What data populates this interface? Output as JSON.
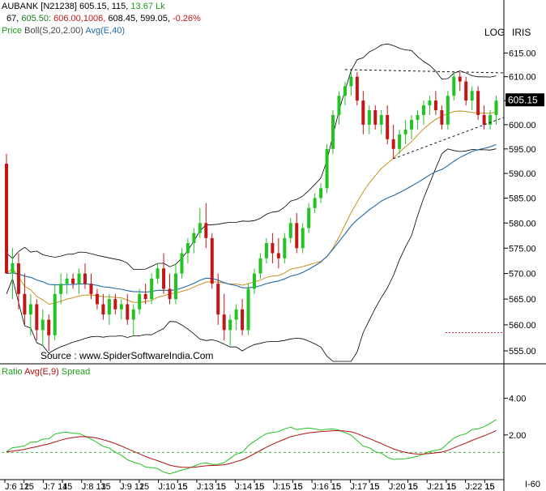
{
  "header": {
    "line1": {
      "symbol": "AUBANK [N21238]",
      "vals": "605.15, 115,",
      "chg": "13.67",
      "unit": "Lk"
    },
    "line2": {
      "a": "67,",
      "b": "605.50:",
      "c": "606.00,1006,",
      "d": "608.45,",
      "e": "599.05,",
      "f": "-0.26%"
    },
    "line3": {
      "price": "Price",
      "boll": "Boll(S,20,2.00)",
      "avg": "Avg(E,40)"
    },
    "log": "LOG",
    "iris": "IRIS"
  },
  "colors": {
    "up": "#22c322",
    "down": "#c01818",
    "boll_band": "#000000",
    "boll_mid": "#c8901e",
    "ema40": "#1f6aa5",
    "ratio": "#22c322",
    "ratio_avg": "#b01010",
    "spread": "#22aa22",
    "grid": "#000000"
  },
  "source": "Source : www.SpiderSoftwareIndia.Com",
  "last_price_tag": "605.15",
  "lower_panel": {
    "ratio": "Ratio",
    "avg": "Avg(E,9)",
    "spread": "Spread",
    "footer_right": "I-60"
  },
  "chart_data": {
    "type": "candlestick",
    "y_scale": "log",
    "ylim": [
      553,
      618
    ],
    "y_ticks": [
      "615.00",
      "610.00",
      "605.00",
      "600.00",
      "595.00",
      "590.00",
      "585.00",
      "580.00",
      "575.00",
      "570.00",
      "565.00",
      "560.00",
      "555.00"
    ],
    "x_ticks": [
      "J:6 12",
      "15",
      "J:7 14",
      "15",
      "J:8 13",
      "15",
      "J:9 12",
      "15",
      "J:10 15",
      "15",
      "J:13 15",
      "15",
      "J:14 15",
      "15",
      "J:15 15",
      "15",
      "J:16 15",
      "15",
      "J:17 15",
      "15",
      "J:20 15",
      "15",
      "J:21 15",
      "15",
      "J:22 15",
      "15"
    ],
    "candles": [
      [
        592,
        594,
        570,
        570
      ],
      [
        570,
        575,
        565,
        572
      ],
      [
        572,
        574,
        563,
        566
      ],
      [
        566,
        570,
        560,
        562
      ],
      [
        562,
        566,
        558,
        564
      ],
      [
        564,
        565,
        557,
        559
      ],
      [
        559,
        563,
        556,
        561
      ],
      [
        561,
        562,
        555,
        558
      ],
      [
        558,
        568,
        557,
        566
      ],
      [
        566,
        570,
        564,
        568
      ],
      [
        568,
        570,
        566,
        569
      ],
      [
        569,
        570,
        567,
        568
      ],
      [
        568,
        571,
        566,
        570
      ],
      [
        570,
        572,
        567,
        568
      ],
      [
        568,
        570,
        565,
        566
      ],
      [
        566,
        567,
        563,
        564
      ],
      [
        564,
        566,
        561,
        562
      ],
      [
        562,
        566,
        560,
        565
      ],
      [
        565,
        566,
        562,
        563
      ],
      [
        563,
        565,
        561,
        564
      ],
      [
        564,
        566,
        560,
        561
      ],
      [
        561,
        564,
        558,
        563
      ],
      [
        563,
        567,
        562,
        566
      ],
      [
        566,
        568,
        564,
        565
      ],
      [
        565,
        570,
        564,
        569
      ],
      [
        569,
        572,
        568,
        571
      ],
      [
        571,
        574,
        566,
        567
      ],
      [
        567,
        570,
        564,
        565
      ],
      [
        565,
        572,
        564,
        570
      ],
      [
        570,
        575,
        569,
        574
      ],
      [
        574,
        577,
        572,
        576
      ],
      [
        576,
        579,
        574,
        578
      ],
      [
        578,
        583,
        577,
        580
      ],
      [
        580,
        584,
        575,
        577
      ],
      [
        577,
        578,
        567,
        568
      ],
      [
        568,
        570,
        560,
        562
      ],
      [
        562,
        566,
        557,
        559
      ],
      [
        559,
        562,
        556,
        561
      ],
      [
        561,
        564,
        559,
        563
      ],
      [
        563,
        565,
        558,
        559
      ],
      [
        559,
        568,
        558,
        567
      ],
      [
        567,
        571,
        566,
        570
      ],
      [
        570,
        574,
        569,
        573
      ],
      [
        573,
        577,
        572,
        576
      ],
      [
        576,
        578,
        572,
        574
      ],
      [
        574,
        577,
        571,
        573
      ],
      [
        573,
        578,
        572,
        577
      ],
      [
        577,
        581,
        576,
        580
      ],
      [
        580,
        582,
        574,
        575
      ],
      [
        575,
        580,
        574,
        579
      ],
      [
        579,
        584,
        578,
        583
      ],
      [
        583,
        586,
        582,
        585
      ],
      [
        585,
        588,
        584,
        587
      ],
      [
        587,
        596,
        586,
        595
      ],
      [
        595,
        603,
        594,
        602
      ],
      [
        602,
        607,
        600,
        606
      ],
      [
        606,
        609,
        604,
        608
      ],
      [
        608,
        611,
        606,
        610
      ],
      [
        610,
        611,
        604,
        605
      ],
      [
        605,
        607,
        598,
        600
      ],
      [
        600,
        604,
        598,
        603
      ],
      [
        603,
        604,
        599,
        600
      ],
      [
        600,
        603,
        598,
        602
      ],
      [
        602,
        604,
        596,
        597
      ],
      [
        597,
        600,
        593,
        595
      ],
      [
        595,
        599,
        594,
        598
      ],
      [
        598,
        601,
        596,
        599
      ],
      [
        599,
        602,
        597,
        601
      ],
      [
        601,
        603,
        599,
        602
      ],
      [
        602,
        605,
        600,
        604
      ],
      [
        604,
        606,
        602,
        605
      ],
      [
        605,
        607,
        602,
        603
      ],
      [
        603,
        604,
        599,
        600
      ],
      [
        600,
        607,
        599,
        606
      ],
      [
        606,
        611,
        605,
        610
      ],
      [
        610,
        611,
        607,
        609
      ],
      [
        609,
        610,
        604,
        605
      ],
      [
        605,
        608,
        603,
        607
      ],
      [
        607,
        608,
        601,
        602
      ],
      [
        602,
        604,
        599,
        600
      ],
      [
        600,
        603,
        599,
        602
      ],
      [
        602,
        606,
        600,
        605
      ]
    ],
    "lower_y_ticks": [
      "4.00",
      "2.00"
    ]
  }
}
